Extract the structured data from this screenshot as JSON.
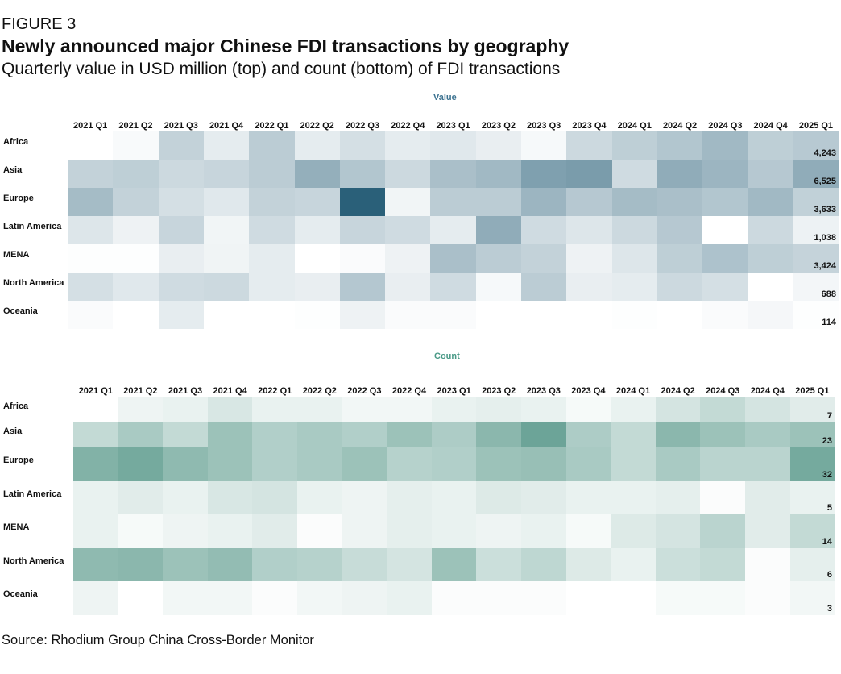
{
  "figure_label": "FIGURE 3",
  "title": "Newly announced major Chinese FDI transactions by geography",
  "subtitle": "Quarterly value in USD million (top) and count (bottom) of FDI transactions",
  "source": "Source: Rhodium Group China Cross-Border Monitor",
  "colors": {
    "value_dark": "#2a6079",
    "count_dark": "#3d8777",
    "value_title": "#3d7391",
    "count_title": "#4a9a87"
  },
  "chart_data": [
    {
      "type": "heatmap",
      "title": "Value",
      "unit": "USD million (estimated from shading; last column labeled)",
      "categories": [
        "2021 Q1",
        "2021 Q2",
        "2021 Q3",
        "2021 Q4",
        "2022 Q1",
        "2022 Q2",
        "2022 Q3",
        "2022 Q4",
        "2023 Q1",
        "2023 Q2",
        "2023 Q3",
        "2023 Q4",
        "2024 Q1",
        "2024 Q2",
        "2024 Q3",
        "2024 Q4",
        "2025 Q1"
      ],
      "rows": [
        "Africa",
        "Asia",
        "Europe",
        "Latin America",
        "MENA",
        "North America",
        "Oceania"
      ],
      "scale_max": 12500,
      "values": [
        [
          0,
          400,
          3500,
          1500,
          4000,
          1500,
          2500,
          1500,
          1800,
          1300,
          500,
          3000,
          3800,
          4500,
          5500,
          3800,
          4243
        ],
        [
          3500,
          3800,
          3000,
          3300,
          4000,
          6300,
          4500,
          3000,
          5000,
          5500,
          7500,
          7800,
          2800,
          6500,
          5800,
          4300,
          6525
        ],
        [
          5300,
          3500,
          2500,
          1800,
          3500,
          3300,
          12500,
          800,
          4000,
          4000,
          5800,
          4300,
          5300,
          5000,
          4500,
          5500,
          3633
        ],
        [
          2000,
          1000,
          3300,
          800,
          2800,
          1500,
          3300,
          2800,
          1500,
          6500,
          2800,
          2000,
          3000,
          4300,
          0,
          3000,
          1038
        ],
        [
          100,
          100,
          1300,
          900,
          1500,
          0,
          300,
          1000,
          5000,
          4000,
          3500,
          1000,
          2000,
          3800,
          4800,
          3800,
          3424
        ],
        [
          2500,
          1800,
          2800,
          3000,
          1500,
          1300,
          4400,
          1300,
          2800,
          500,
          4000,
          1300,
          1500,
          3000,
          2500,
          0,
          688
        ],
        [
          300,
          0,
          1500,
          0,
          0,
          100,
          1000,
          300,
          300,
          0,
          0,
          0,
          100,
          0,
          300,
          600,
          114
        ]
      ],
      "data_labels": [
        "4,243",
        "6,525",
        "3,633",
        "1,038",
        "3,424",
        "688",
        "114"
      ]
    },
    {
      "type": "heatmap",
      "title": "Count",
      "unit": "transactions (estimated from shading; last column labeled)",
      "categories": [
        "2021 Q1",
        "2021 Q2",
        "2021 Q3",
        "2021 Q4",
        "2022 Q1",
        "2022 Q2",
        "2022 Q3",
        "2022 Q4",
        "2023 Q1",
        "2023 Q2",
        "2023 Q3",
        "2023 Q4",
        "2024 Q1",
        "2024 Q2",
        "2024 Q3",
        "2024 Q4",
        "2025 Q1"
      ],
      "rows": [
        "Africa",
        "Asia",
        "Europe",
        "Latin America",
        "MENA",
        "North America",
        "Oceania"
      ],
      "scale_max": 45,
      "values": [
        [
          0,
          4,
          5,
          9,
          5,
          5,
          3,
          3,
          5,
          6,
          5,
          2,
          5,
          10,
          14,
          10,
          7
        ],
        [
          14,
          20,
          14,
          23,
          18,
          20,
          18,
          23,
          19,
          27,
          34,
          19,
          14,
          27,
          23,
          20,
          23
        ],
        [
          29,
          32,
          26,
          23,
          18,
          20,
          23,
          17,
          18,
          23,
          24,
          20,
          14,
          20,
          16,
          16,
          32
        ],
        [
          5,
          7,
          5,
          9,
          10,
          5,
          4,
          6,
          5,
          8,
          7,
          5,
          5,
          6,
          1,
          7,
          5
        ],
        [
          5,
          2,
          4,
          5,
          7,
          1,
          4,
          6,
          5,
          4,
          5,
          2,
          8,
          10,
          16,
          7,
          14
        ],
        [
          26,
          27,
          23,
          25,
          18,
          17,
          13,
          10,
          23,
          12,
          15,
          8,
          5,
          12,
          14,
          1,
          6
        ],
        [
          4,
          0,
          3,
          3,
          1,
          3,
          4,
          5,
          1,
          1,
          1,
          0,
          0,
          2,
          2,
          1,
          3
        ]
      ],
      "data_labels": [
        "7",
        "23",
        "32",
        "5",
        "14",
        "6",
        "3"
      ]
    }
  ]
}
